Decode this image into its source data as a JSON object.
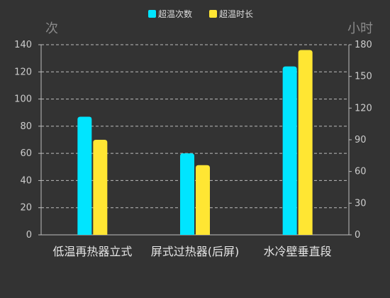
{
  "chart_data": {
    "type": "bar",
    "categories": [
      "低温再热器立式",
      "屏式过热器(后屏)",
      "水冷壁垂直段"
    ],
    "series": [
      {
        "name": "超温次数",
        "values": [
          87,
          60,
          124
        ],
        "axis": "left",
        "color": "#00E5FF"
      },
      {
        "name": "超温时长",
        "values": [
          90,
          66,
          175
        ],
        "axis": "right",
        "color": "#FFE633"
      }
    ],
    "left_axis": {
      "unit": "次",
      "ylim": [
        0,
        140
      ],
      "ticks": [
        0,
        20,
        40,
        60,
        80,
        100,
        120,
        140
      ]
    },
    "right_axis": {
      "unit": "小时",
      "ylim": [
        0,
        180
      ],
      "ticks": [
        0,
        30,
        60,
        90,
        120,
        150,
        180
      ]
    },
    "grid": true,
    "legend_position": "top-center"
  },
  "colors": {
    "background": "#333333",
    "axis_text": "#cccccc",
    "unit_text": "#8a8a8a",
    "category_text": "#e6e6e6",
    "grid": "#bdbdbd"
  }
}
